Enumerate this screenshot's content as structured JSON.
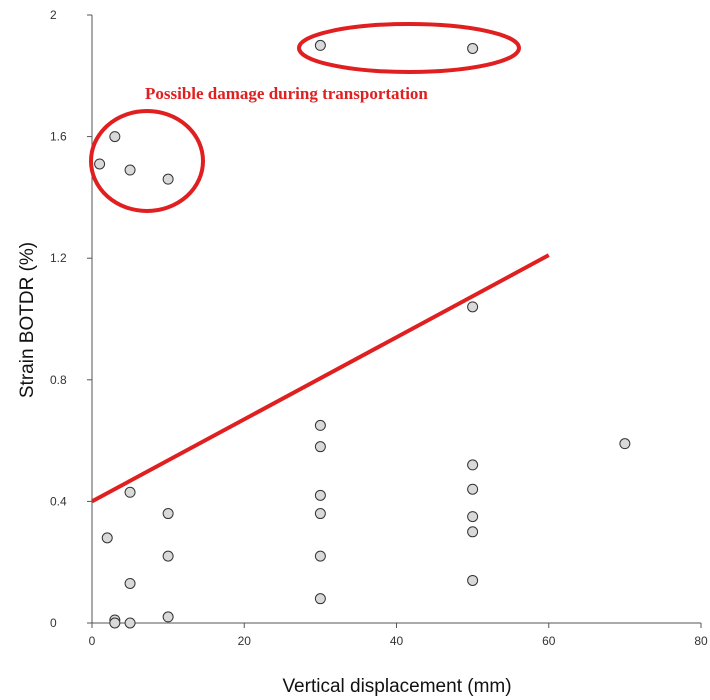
{
  "chart_data": {
    "type": "scatter",
    "xlabel": "Vertical displacement (mm)",
    "ylabel": "Strain BOTDR (%)",
    "xlim": [
      0,
      80
    ],
    "ylim": [
      0,
      2
    ],
    "x_ticks": [
      "0",
      "20",
      "40",
      "60",
      "80"
    ],
    "y_ticks": [
      "0",
      "0.4",
      "0.8",
      "1.2",
      "1.6",
      "2"
    ],
    "grid": false,
    "points": [
      {
        "x": 1,
        "y": 1.51
      },
      {
        "x": 3,
        "y": 1.6
      },
      {
        "x": 5,
        "y": 1.49
      },
      {
        "x": 10,
        "y": 1.46
      },
      {
        "x": 30,
        "y": 1.9
      },
      {
        "x": 50,
        "y": 1.89
      },
      {
        "x": 50,
        "y": 1.04
      },
      {
        "x": 70,
        "y": 0.59
      },
      {
        "x": 30,
        "y": 0.65
      },
      {
        "x": 30,
        "y": 0.58
      },
      {
        "x": 30,
        "y": 0.42
      },
      {
        "x": 30,
        "y": 0.36
      },
      {
        "x": 30,
        "y": 0.22
      },
      {
        "x": 30,
        "y": 0.08
      },
      {
        "x": 50,
        "y": 0.52
      },
      {
        "x": 50,
        "y": 0.44
      },
      {
        "x": 50,
        "y": 0.35
      },
      {
        "x": 50,
        "y": 0.3
      },
      {
        "x": 50,
        "y": 0.14
      },
      {
        "x": 2,
        "y": 0.28
      },
      {
        "x": 5,
        "y": 0.43
      },
      {
        "x": 5,
        "y": 0.13
      },
      {
        "x": 5,
        "y": 0.0
      },
      {
        "x": 3,
        "y": 0.01
      },
      {
        "x": 3,
        "y": 0.0
      },
      {
        "x": 10,
        "y": 0.36
      },
      {
        "x": 10,
        "y": 0.22
      },
      {
        "x": 10,
        "y": 0.02
      }
    ],
    "trend_line": {
      "x": [
        0,
        60
      ],
      "y": [
        0.4,
        1.21
      ],
      "color": "#e02020"
    },
    "annotations": [
      {
        "text": "Possible damage during transportation",
        "color": "#e02020"
      }
    ],
    "colors": {
      "marker_fill": "#d9d9d9",
      "marker_stroke": "#333333",
      "highlight": "#e02020",
      "axis": "#555555"
    }
  }
}
